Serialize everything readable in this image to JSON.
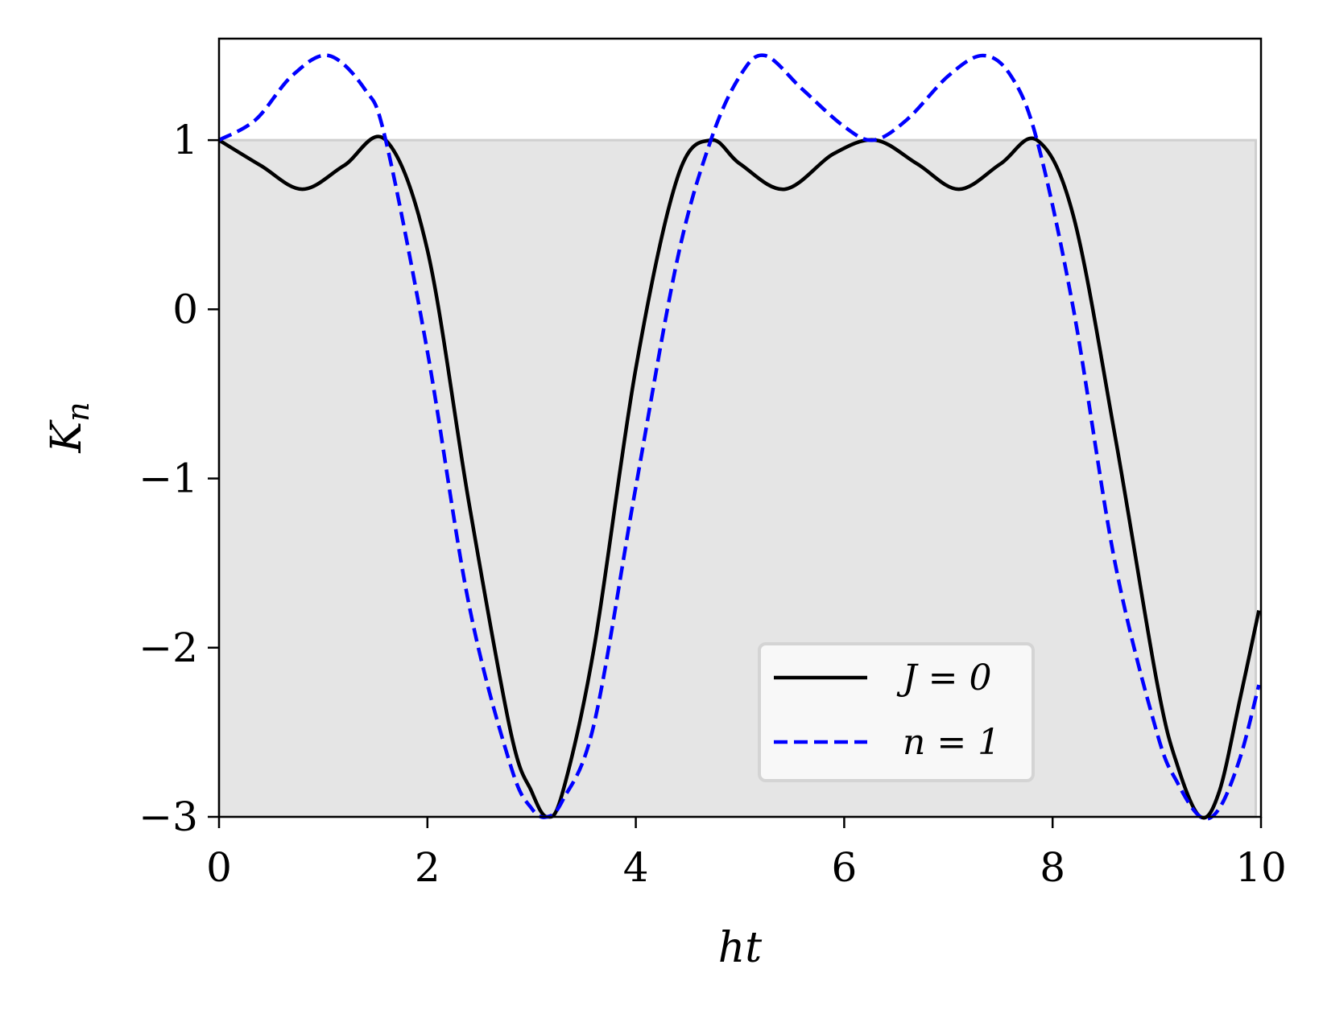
{
  "chart_data": {
    "type": "line",
    "xlabel": "ht",
    "ylabel": "K_n",
    "xlim": [
      0,
      10
    ],
    "ylim": [
      -3,
      1.6
    ],
    "xticks": [
      0,
      2,
      4,
      6,
      8,
      10
    ],
    "yticks": [
      -3,
      -2,
      -1,
      0,
      1
    ],
    "xtick_labels": [
      "0",
      "2",
      "4",
      "6",
      "8",
      "10"
    ],
    "ytick_labels": [
      "−3",
      "−2",
      "−1",
      "0",
      "1"
    ],
    "shaded_region": {
      "x": [
        0,
        9.95
      ],
      "y": [
        -3,
        1
      ],
      "color": "#e5e5e5"
    },
    "grid": false,
    "legend": {
      "placement": "lower right"
    },
    "series": [
      {
        "name": "J = 0",
        "color": "#000000",
        "style": "solid",
        "x": [
          0,
          0.4,
          0.8,
          1.2,
          1.6,
          2.0,
          2.4,
          2.8,
          3.0,
          3.15,
          3.3,
          3.6,
          4.0,
          4.4,
          4.72,
          5.0,
          5.43,
          5.9,
          6.3,
          6.7,
          7.1,
          7.5,
          7.85,
          8.2,
          8.6,
          9.0,
          9.2,
          9.42,
          9.6,
          9.8,
          9.98
        ],
        "y": [
          1.0,
          0.85,
          0.71,
          0.85,
          1.0,
          0.35,
          -1.15,
          -2.5,
          -2.85,
          -3.0,
          -2.85,
          -2.0,
          -0.35,
          0.78,
          1.0,
          0.86,
          0.71,
          0.92,
          1.0,
          0.86,
          0.71,
          0.86,
          1.0,
          0.55,
          -0.75,
          -2.2,
          -2.7,
          -3.0,
          -2.85,
          -2.3,
          -1.78
        ]
      },
      {
        "name": "n = 1",
        "color": "#0000ff",
        "style": "dashed",
        "x": [
          0,
          0.35,
          0.7,
          1.05,
          1.4,
          1.6,
          2.0,
          2.4,
          2.8,
          3.0,
          3.15,
          3.3,
          3.6,
          4.0,
          4.4,
          4.72,
          5.0,
          5.24,
          5.6,
          6.0,
          6.28,
          6.6,
          7.0,
          7.33,
          7.6,
          7.85,
          8.2,
          8.6,
          9.0,
          9.2,
          9.42,
          9.6,
          9.8,
          9.98
        ],
        "y": [
          1.0,
          1.12,
          1.38,
          1.5,
          1.3,
          1.0,
          -0.25,
          -1.75,
          -2.7,
          -2.95,
          -3.0,
          -2.9,
          -2.45,
          -1.05,
          0.3,
          1.0,
          1.38,
          1.5,
          1.3,
          1.08,
          1.0,
          1.12,
          1.38,
          1.5,
          1.38,
          1.0,
          0.0,
          -1.5,
          -2.5,
          -2.8,
          -3.0,
          -2.95,
          -2.65,
          -2.22
        ]
      }
    ]
  }
}
